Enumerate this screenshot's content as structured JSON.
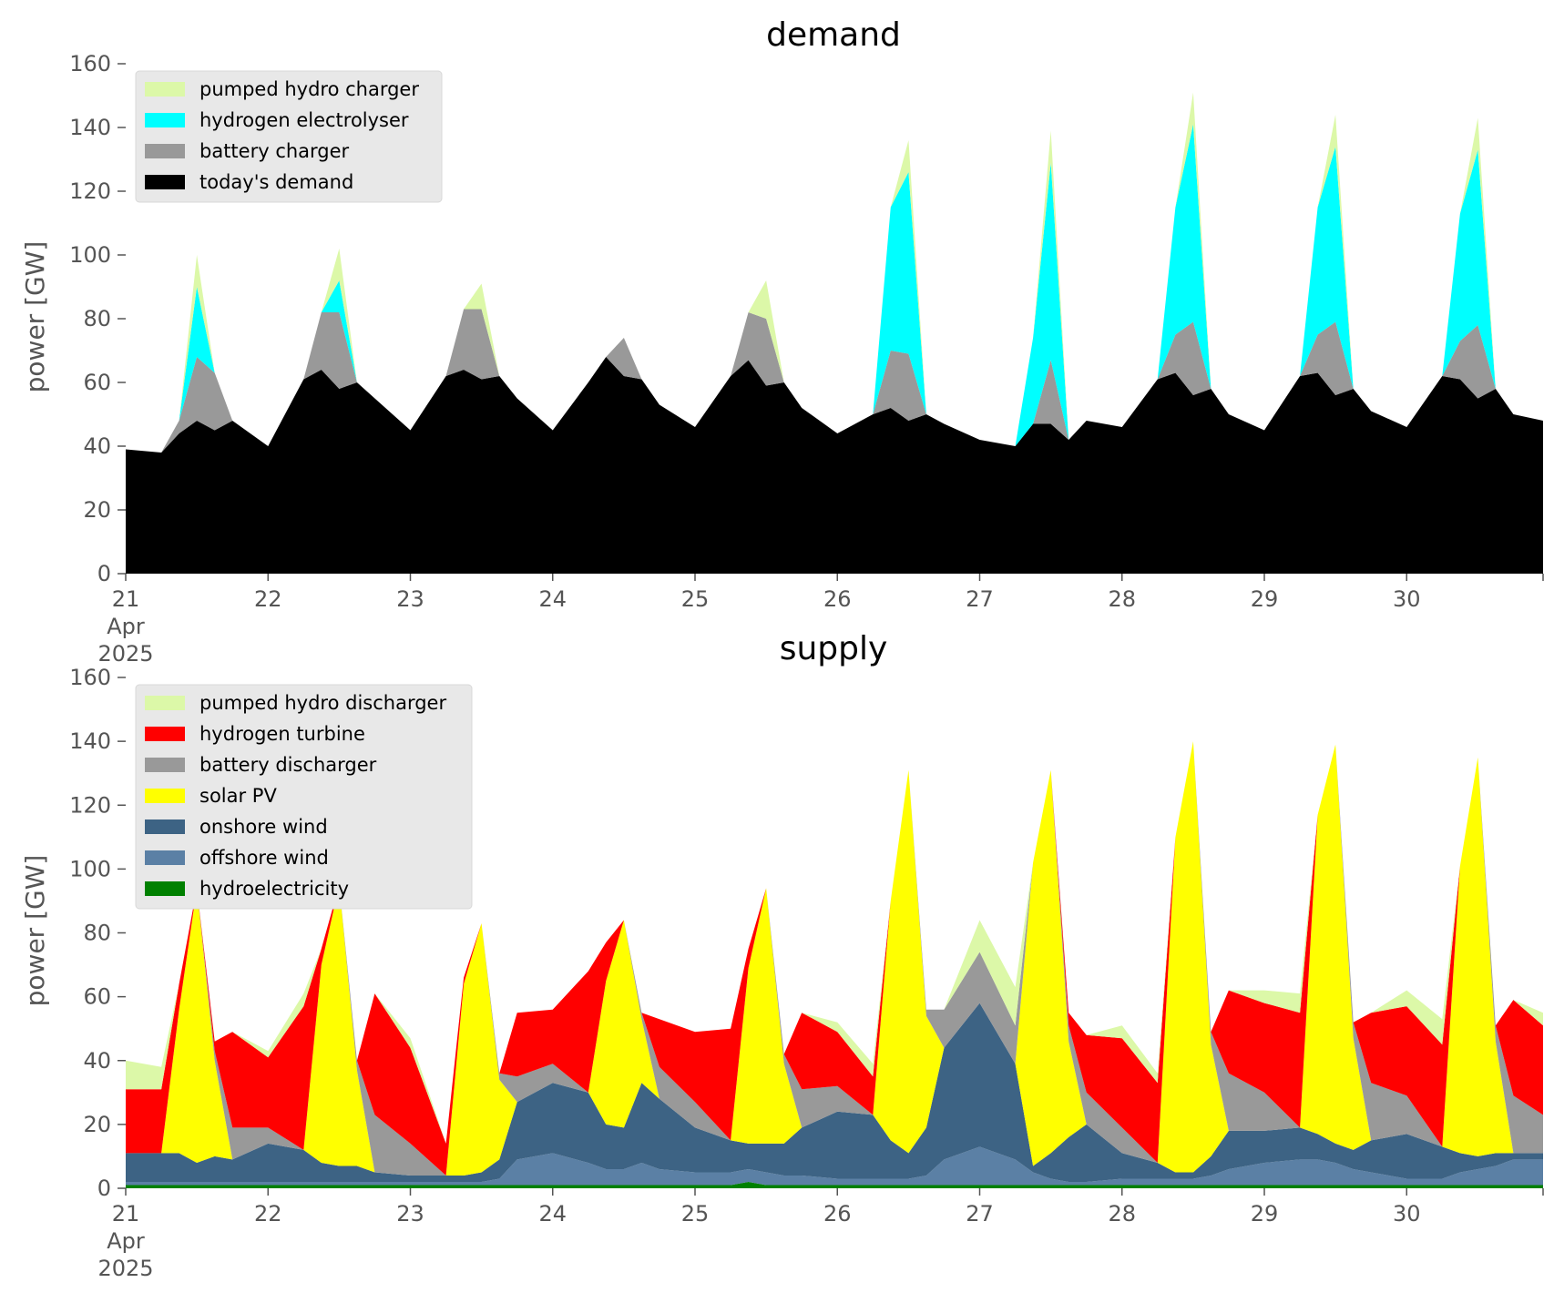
{
  "chart_data": [
    {
      "type": "area",
      "stacked": true,
      "title": "demand",
      "ylabel": "power [GW]",
      "xlabel": "",
      "ylim": [
        0,
        160
      ],
      "yticks": [
        0,
        20,
        40,
        60,
        80,
        100,
        120,
        140,
        160
      ],
      "xlim": [
        "2025-04-21 00:00",
        "2025-04-30 23:00"
      ],
      "xticks": [
        {
          "x": "2025-04-21 00:00",
          "label": "21",
          "sub1": "Apr",
          "sub2": "2025"
        },
        {
          "x": "2025-04-22 00:00",
          "label": "22"
        },
        {
          "x": "2025-04-23 00:00",
          "label": "23"
        },
        {
          "x": "2025-04-24 00:00",
          "label": "24"
        },
        {
          "x": "2025-04-25 00:00",
          "label": "25"
        },
        {
          "x": "2025-04-26 00:00",
          "label": "26"
        },
        {
          "x": "2025-04-27 00:00",
          "label": "27"
        },
        {
          "x": "2025-04-28 00:00",
          "label": "28"
        },
        {
          "x": "2025-04-29 00:00",
          "label": "29"
        },
        {
          "x": "2025-04-30 00:00",
          "label": "30"
        }
      ],
      "grid": false,
      "legend_position": "upper-left",
      "x": [
        "2025-04-21 00:00",
        "2025-04-21 06:00",
        "2025-04-21 09:00",
        "2025-04-21 12:00",
        "2025-04-21 15:00",
        "2025-04-21 18:00",
        "2025-04-22 00:00",
        "2025-04-22 06:00",
        "2025-04-22 09:00",
        "2025-04-22 12:00",
        "2025-04-22 15:00",
        "2025-04-22 18:00",
        "2025-04-23 00:00",
        "2025-04-23 06:00",
        "2025-04-23 09:00",
        "2025-04-23 12:00",
        "2025-04-23 15:00",
        "2025-04-23 18:00",
        "2025-04-24 00:00",
        "2025-04-24 06:00",
        "2025-04-24 09:00",
        "2025-04-24 12:00",
        "2025-04-24 15:00",
        "2025-04-24 18:00",
        "2025-04-25 00:00",
        "2025-04-25 06:00",
        "2025-04-25 09:00",
        "2025-04-25 12:00",
        "2025-04-25 15:00",
        "2025-04-25 18:00",
        "2025-04-26 00:00",
        "2025-04-26 06:00",
        "2025-04-26 09:00",
        "2025-04-26 12:00",
        "2025-04-26 15:00",
        "2025-04-26 18:00",
        "2025-04-27 00:00",
        "2025-04-27 06:00",
        "2025-04-27 09:00",
        "2025-04-27 12:00",
        "2025-04-27 15:00",
        "2025-04-27 18:00",
        "2025-04-28 00:00",
        "2025-04-28 06:00",
        "2025-04-28 09:00",
        "2025-04-28 12:00",
        "2025-04-28 15:00",
        "2025-04-28 18:00",
        "2025-04-29 00:00",
        "2025-04-29 06:00",
        "2025-04-29 09:00",
        "2025-04-29 12:00",
        "2025-04-29 15:00",
        "2025-04-29 18:00",
        "2025-04-30 00:00",
        "2025-04-30 06:00",
        "2025-04-30 09:00",
        "2025-04-30 12:00",
        "2025-04-30 15:00",
        "2025-04-30 18:00",
        "2025-04-30 23:00"
      ],
      "series": [
        {
          "name": "today's demand",
          "color": "#000000",
          "values": [
            39,
            38,
            44,
            48,
            45,
            48,
            40,
            61,
            64,
            58,
            60,
            55,
            45,
            62,
            64,
            61,
            62,
            55,
            45,
            60,
            68,
            62,
            61,
            53,
            46,
            62,
            67,
            59,
            60,
            52,
            44,
            50,
            52,
            48,
            50,
            47,
            42,
            40,
            47,
            47,
            42,
            48,
            46,
            61,
            63,
            56,
            58,
            50,
            45,
            62,
            63,
            56,
            58,
            51,
            46,
            62,
            61,
            55,
            58,
            50,
            48
          ]
        },
        {
          "name": "battery charger",
          "color": "#999999",
          "values": [
            0,
            0,
            4,
            20,
            18,
            0,
            0,
            0,
            18,
            24,
            0,
            0,
            0,
            0,
            19,
            22,
            0,
            0,
            0,
            0,
            0,
            12,
            0,
            0,
            0,
            0,
            15,
            21,
            0,
            0,
            0,
            0,
            18,
            21,
            0,
            0,
            0,
            0,
            0,
            20,
            0,
            0,
            0,
            0,
            12,
            23,
            0,
            0,
            0,
            0,
            12,
            23,
            0,
            0,
            0,
            0,
            12,
            23,
            0,
            0,
            0
          ]
        },
        {
          "name": "hydrogen electrolyser",
          "color": "#00ffff",
          "values": [
            0,
            0,
            0,
            22,
            0,
            0,
            0,
            0,
            0,
            10,
            0,
            0,
            0,
            0,
            0,
            0,
            0,
            0,
            0,
            0,
            0,
            0,
            0,
            0,
            0,
            0,
            0,
            0,
            0,
            0,
            0,
            0,
            45,
            57,
            0,
            0,
            0,
            0,
            27,
            62,
            0,
            0,
            0,
            0,
            40,
            62,
            0,
            0,
            0,
            0,
            40,
            55,
            0,
            0,
            0,
            0,
            40,
            55,
            0,
            0,
            0
          ]
        },
        {
          "name": "pumped hydro charger",
          "color": "#dcf8a8",
          "values": [
            0,
            0,
            0,
            10,
            0,
            0,
            0,
            0,
            0,
            10,
            0,
            0,
            0,
            0,
            0,
            8,
            0,
            0,
            0,
            0,
            0,
            0,
            0,
            0,
            0,
            0,
            0,
            12,
            0,
            0,
            0,
            0,
            0,
            10,
            0,
            0,
            0,
            0,
            0,
            10,
            0,
            0,
            0,
            0,
            0,
            10,
            0,
            0,
            0,
            0,
            0,
            10,
            0,
            0,
            0,
            0,
            0,
            10,
            0,
            0,
            0
          ]
        }
      ]
    },
    {
      "type": "area",
      "stacked": true,
      "title": "supply",
      "ylabel": "power [GW]",
      "xlabel": "",
      "ylim": [
        0,
        160
      ],
      "yticks": [
        0,
        20,
        40,
        60,
        80,
        100,
        120,
        140,
        160
      ],
      "xlim": [
        "2025-04-21 00:00",
        "2025-04-30 23:00"
      ],
      "xticks": [
        {
          "x": "2025-04-21 00:00",
          "label": "21",
          "sub1": "Apr",
          "sub2": "2025"
        },
        {
          "x": "2025-04-22 00:00",
          "label": "22"
        },
        {
          "x": "2025-04-23 00:00",
          "label": "23"
        },
        {
          "x": "2025-04-24 00:00",
          "label": "24"
        },
        {
          "x": "2025-04-25 00:00",
          "label": "25"
        },
        {
          "x": "2025-04-26 00:00",
          "label": "26"
        },
        {
          "x": "2025-04-27 00:00",
          "label": "27"
        },
        {
          "x": "2025-04-28 00:00",
          "label": "28"
        },
        {
          "x": "2025-04-29 00:00",
          "label": "29"
        },
        {
          "x": "2025-04-30 00:00",
          "label": "30"
        }
      ],
      "grid": false,
      "legend_position": "upper-left",
      "x": [
        "2025-04-21 00:00",
        "2025-04-21 06:00",
        "2025-04-21 09:00",
        "2025-04-21 12:00",
        "2025-04-21 15:00",
        "2025-04-21 18:00",
        "2025-04-22 00:00",
        "2025-04-22 06:00",
        "2025-04-22 09:00",
        "2025-04-22 12:00",
        "2025-04-22 15:00",
        "2025-04-22 18:00",
        "2025-04-23 00:00",
        "2025-04-23 06:00",
        "2025-04-23 09:00",
        "2025-04-23 12:00",
        "2025-04-23 15:00",
        "2025-04-23 18:00",
        "2025-04-24 00:00",
        "2025-04-24 06:00",
        "2025-04-24 09:00",
        "2025-04-24 12:00",
        "2025-04-24 15:00",
        "2025-04-24 18:00",
        "2025-04-25 00:00",
        "2025-04-25 06:00",
        "2025-04-25 09:00",
        "2025-04-25 12:00",
        "2025-04-25 15:00",
        "2025-04-25 18:00",
        "2025-04-26 00:00",
        "2025-04-26 06:00",
        "2025-04-26 09:00",
        "2025-04-26 12:00",
        "2025-04-26 15:00",
        "2025-04-26 18:00",
        "2025-04-27 00:00",
        "2025-04-27 06:00",
        "2025-04-27 09:00",
        "2025-04-27 12:00",
        "2025-04-27 15:00",
        "2025-04-27 18:00",
        "2025-04-28 00:00",
        "2025-04-28 06:00",
        "2025-04-28 09:00",
        "2025-04-28 12:00",
        "2025-04-28 15:00",
        "2025-04-28 18:00",
        "2025-04-29 00:00",
        "2025-04-29 06:00",
        "2025-04-29 09:00",
        "2025-04-29 12:00",
        "2025-04-29 15:00",
        "2025-04-29 18:00",
        "2025-04-30 00:00",
        "2025-04-30 06:00",
        "2025-04-30 09:00",
        "2025-04-30 12:00",
        "2025-04-30 15:00",
        "2025-04-30 18:00",
        "2025-04-30 23:00"
      ],
      "series": [
        {
          "name": "hydroelectricity",
          "color": "#008000",
          "values": [
            1,
            1,
            1,
            1,
            1,
            1,
            1,
            1,
            1,
            1,
            1,
            1,
            1,
            1,
            1,
            1,
            1,
            1,
            1,
            1,
            1,
            1,
            1,
            1,
            1,
            1,
            2,
            1,
            1,
            1,
            1,
            1,
            1,
            1,
            1,
            1,
            1,
            1,
            1,
            1,
            1,
            1,
            1,
            1,
            1,
            1,
            1,
            1,
            1,
            1,
            1,
            1,
            1,
            1,
            1,
            1,
            1,
            1,
            1,
            1,
            1
          ]
        },
        {
          "name": "offshore wind",
          "color": "#5b80a5",
          "values": [
            1,
            1,
            1,
            1,
            1,
            1,
            1,
            1,
            1,
            1,
            1,
            1,
            1,
            1,
            1,
            1,
            2,
            8,
            10,
            7,
            5,
            5,
            7,
            5,
            4,
            4,
            4,
            4,
            3,
            3,
            2,
            2,
            2,
            2,
            3,
            8,
            12,
            8,
            4,
            2,
            1,
            1,
            2,
            2,
            2,
            2,
            3,
            5,
            7,
            8,
            8,
            7,
            5,
            4,
            2,
            2,
            4,
            5,
            6,
            8,
            8
          ]
        },
        {
          "name": "onshore wind",
          "color": "#3d6384",
          "values": [
            9,
            9,
            9,
            6,
            8,
            7,
            12,
            10,
            6,
            5,
            5,
            3,
            2,
            2,
            2,
            3,
            6,
            18,
            22,
            22,
            14,
            13,
            25,
            22,
            14,
            10,
            8,
            9,
            10,
            15,
            21,
            20,
            12,
            8,
            15,
            35,
            45,
            30,
            2,
            8,
            14,
            18,
            8,
            5,
            2,
            2,
            6,
            12,
            10,
            10,
            8,
            6,
            6,
            10,
            14,
            10,
            6,
            4,
            4,
            2,
            2
          ]
        },
        {
          "name": "solar PV",
          "color": "#ffff00",
          "values": [
            0,
            0,
            45,
            86,
            30,
            0,
            0,
            0,
            62,
            88,
            30,
            0,
            0,
            0,
            60,
            78,
            25,
            0,
            0,
            0,
            45,
            65,
            20,
            0,
            0,
            0,
            55,
            80,
            25,
            0,
            0,
            0,
            75,
            120,
            35,
            0,
            0,
            0,
            95,
            120,
            30,
            0,
            0,
            0,
            105,
            135,
            35,
            0,
            0,
            0,
            100,
            125,
            35,
            0,
            0,
            0,
            90,
            125,
            35,
            0,
            0
          ]
        },
        {
          "name": "battery discharger",
          "color": "#999999",
          "values": [
            0,
            0,
            0,
            0,
            3,
            10,
            5,
            0,
            0,
            0,
            3,
            18,
            10,
            0,
            0,
            0,
            2,
            8,
            6,
            0,
            0,
            0,
            2,
            10,
            8,
            0,
            0,
            0,
            3,
            12,
            8,
            0,
            0,
            0,
            2,
            12,
            16,
            12,
            0,
            0,
            5,
            10,
            8,
            0,
            0,
            0,
            4,
            18,
            12,
            0,
            0,
            0,
            5,
            18,
            12,
            0,
            0,
            0,
            5,
            18,
            12
          ]
        },
        {
          "name": "hydrogen turbine",
          "color": "#ff0000",
          "values": [
            20,
            20,
            8,
            0,
            3,
            30,
            22,
            45,
            5,
            0,
            0,
            38,
            30,
            10,
            2,
            0,
            0,
            20,
            17,
            38,
            12,
            0,
            0,
            15,
            22,
            35,
            6,
            0,
            0,
            24,
            17,
            12,
            0,
            0,
            0,
            0,
            0,
            0,
            0,
            0,
            4,
            18,
            28,
            25,
            0,
            0,
            0,
            26,
            28,
            36,
            0,
            0,
            0,
            22,
            28,
            32,
            0,
            0,
            0,
            30,
            28
          ]
        },
        {
          "name": "pumped hydro discharger",
          "color": "#dcf8a8",
          "values": [
            9,
            7,
            0,
            0,
            0,
            0,
            2,
            4,
            0,
            0,
            0,
            0,
            3,
            0,
            0,
            0,
            0,
            0,
            0,
            0,
            0,
            0,
            0,
            0,
            0,
            0,
            0,
            0,
            0,
            0,
            3,
            4,
            0,
            0,
            0,
            0,
            10,
            12,
            0,
            0,
            0,
            0,
            4,
            3,
            0,
            0,
            0,
            0,
            4,
            6,
            0,
            0,
            0,
            0,
            5,
            8,
            0,
            0,
            0,
            0,
            4
          ]
        }
      ],
      "legend_order": [
        "pumped hydro discharger",
        "hydrogen turbine",
        "battery discharger",
        "solar PV",
        "onshore wind",
        "offshore wind",
        "hydroelectricity"
      ]
    }
  ]
}
